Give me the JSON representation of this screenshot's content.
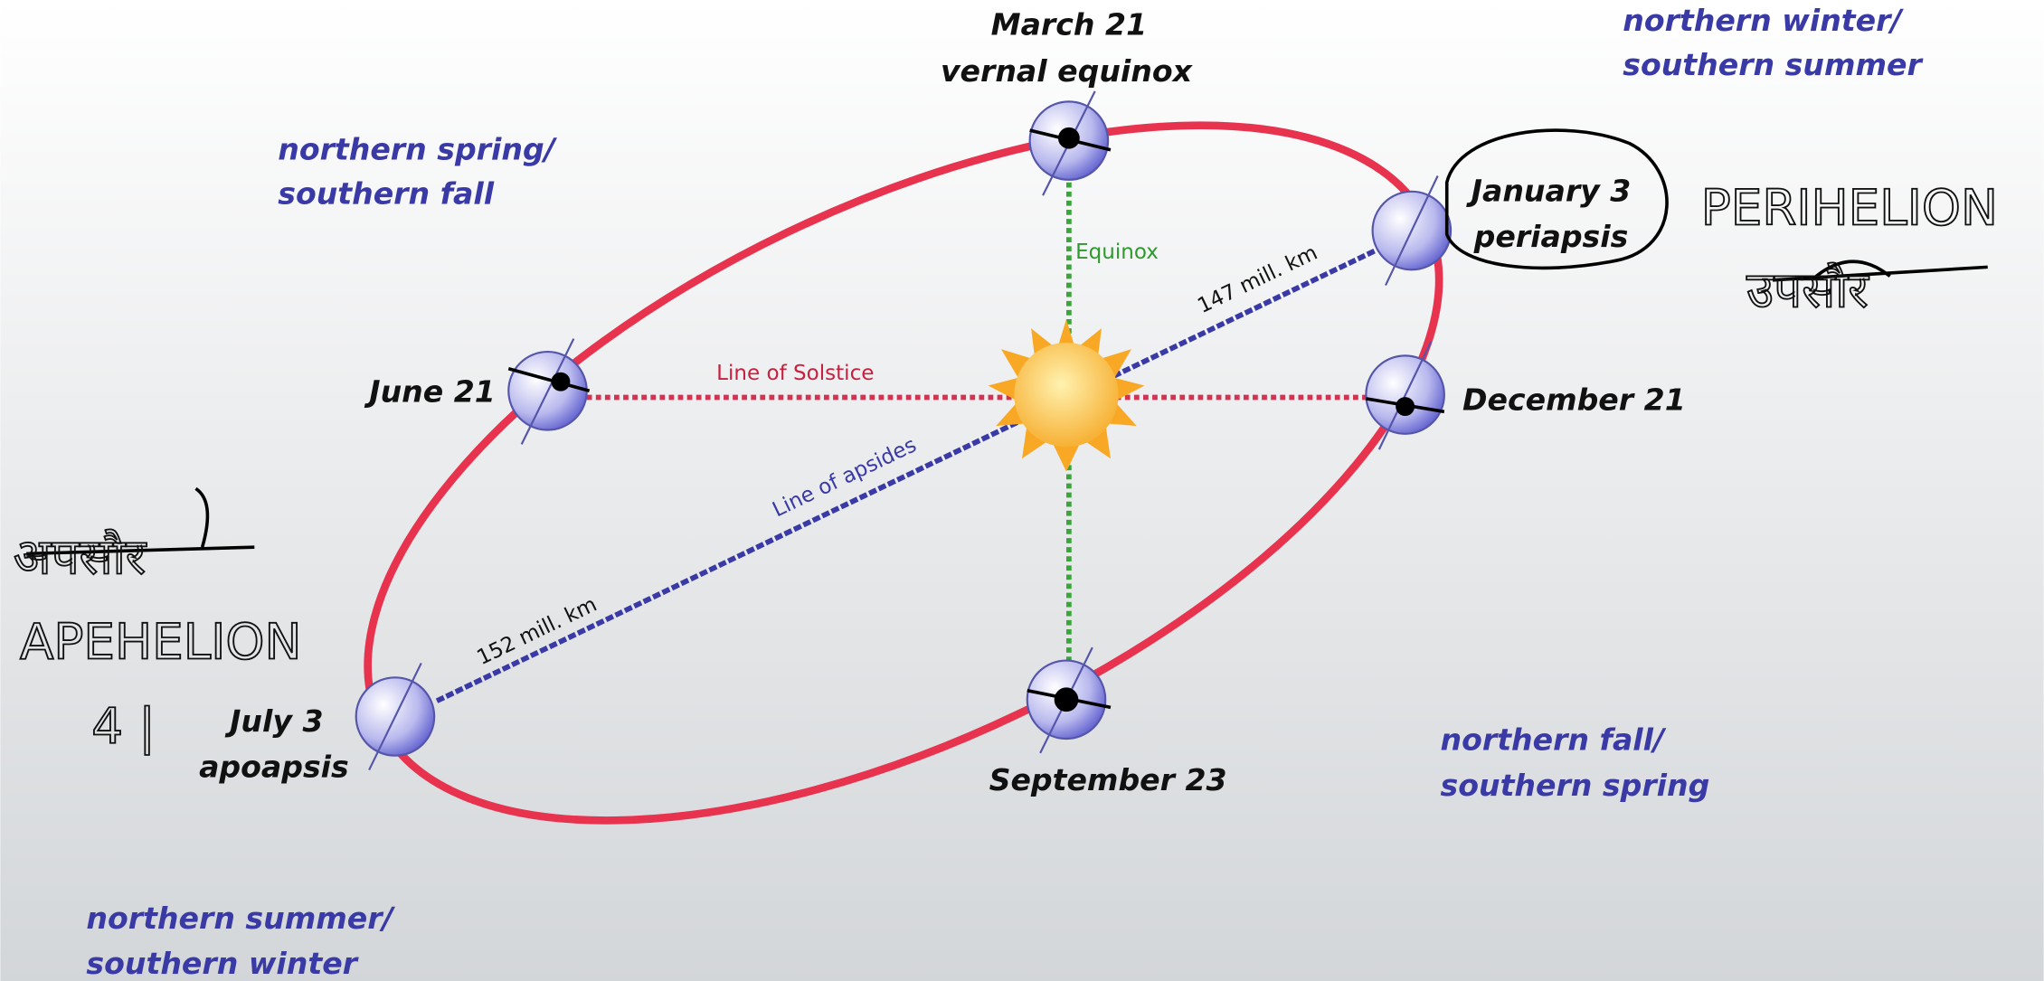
{
  "title": {
    "march": "March 21",
    "vernal": "vernal equinox"
  },
  "points": {
    "january": "January 3",
    "periapsis": "periapsis",
    "june": "June 21",
    "december": "December 21",
    "july": "July 3",
    "apoapsis": "apoapsis",
    "september": "September 23"
  },
  "seasons": [
    {
      "line1": "northern winter/",
      "line2": "southern summer"
    },
    {
      "line1": "northern spring/",
      "line2": "southern fall"
    },
    {
      "line1": "northern fall/",
      "line2": "southern spring"
    },
    {
      "line1": "northern summer/",
      "line2": "southern winter"
    }
  ],
  "lines": {
    "solstice": "Line of Solstice",
    "equinox": "Equinox",
    "apsides": "Line of apsides",
    "near": "147 mill. km",
    "far": "152 mill. km"
  },
  "annotations": [
    "PERIHELION",
    "उपसौर",
    "अपसौर",
    "APEHELION",
    "4 |"
  ]
}
